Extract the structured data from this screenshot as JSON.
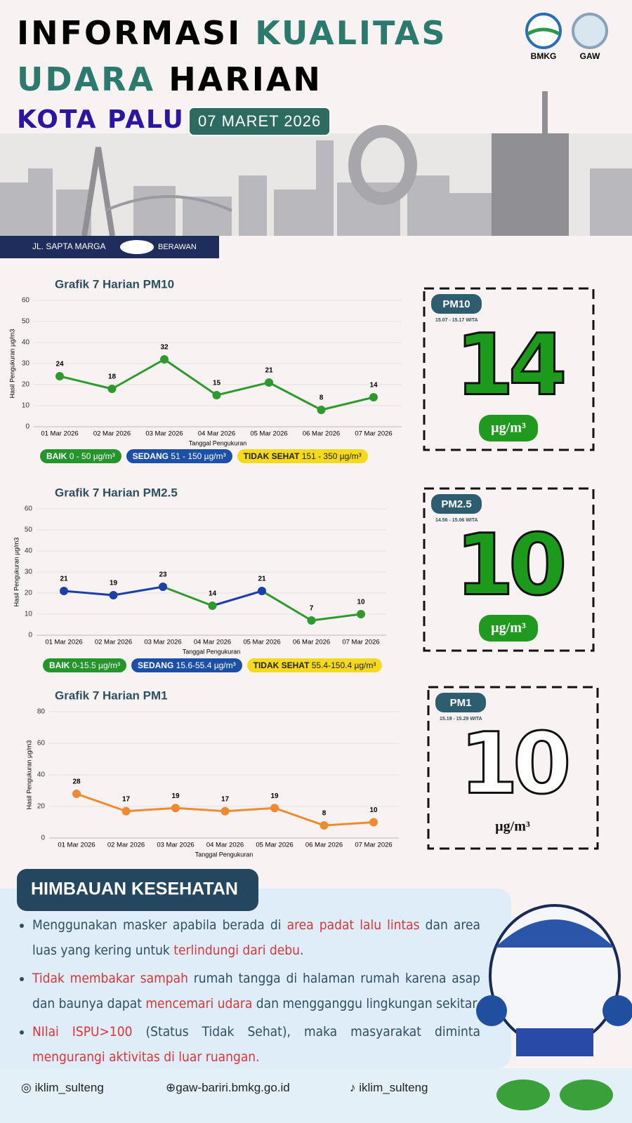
{
  "header": {
    "title_1": "INFORMASI",
    "title_2": "KUALITAS",
    "title_3": "UDARA",
    "title_4": "HARIAN",
    "city": "KOTA PALU",
    "date": "07 MARET 2026",
    "logo_1": "BMKG",
    "logo_2": "GAW",
    "location": "JL. SAPTA MARGA",
    "weather": "BERAWAN"
  },
  "chart_data": [
    {
      "type": "line",
      "title": "Grafik 7 Harian PM10",
      "x_label": "Tanggal Pengukuran",
      "y_label": "Hasil Pengukuran µg/m3",
      "categories": [
        "01 Mar 2026",
        "02 Mar 2026",
        "03 Mar 2026",
        "04 Mar 2026",
        "05 Mar 2026",
        "06 Mar 2026",
        "07 Mar 2026"
      ],
      "values": [
        24,
        18,
        32,
        15,
        21,
        8,
        14
      ],
      "color": "#2e9a2e",
      "ylim": [
        0,
        60
      ],
      "yticks": [
        0,
        10,
        20,
        30,
        40,
        50,
        60
      ],
      "grid": true,
      "bands": [
        {
          "label": "BAIK",
          "range": "0 - 50 µg/m³",
          "color": "#23952b"
        },
        {
          "label": "SEDANG",
          "range": "51 - 150 µg/m³",
          "color": "#1c4fa6"
        },
        {
          "label": "TIDAK SEHAT",
          "range": "151 - 350 µg/m³",
          "color": "#f5d91c"
        }
      ]
    },
    {
      "type": "line",
      "title": "Grafik 7 Harian PM2.5",
      "x_label": "Tanggal Pengukuran",
      "y_label": "Hasil Pengukuran µg/m3",
      "categories": [
        "01 Mar 2026",
        "02 Mar 2026",
        "03 Mar 2026",
        "04 Mar 2026",
        "05 Mar 2026",
        "06 Mar 2026",
        "07 Mar 2026"
      ],
      "values": [
        21,
        19,
        23,
        14,
        21,
        7,
        10
      ],
      "color": "#1c3fa8",
      "point_colors": [
        "#1c3fa8",
        "#1c3fa8",
        "#1c3fa8",
        "#2e9a2e",
        "#1c3fa8",
        "#2e9a2e",
        "#2e9a2e"
      ],
      "ylim": [
        0,
        60
      ],
      "yticks": [
        0,
        10,
        20,
        30,
        40,
        50,
        60
      ],
      "grid": true,
      "bands": [
        {
          "label": "BAIK",
          "range": "0-15.5 µg/m³",
          "color": "#23952b"
        },
        {
          "label": "SEDANG",
          "range": "15.6-55.4 µg/m³",
          "color": "#1c4fa6"
        },
        {
          "label": "TIDAK SEHAT",
          "range": "55.4-150.4 µg/m³",
          "color": "#f5d91c"
        }
      ]
    },
    {
      "type": "line",
      "title": "Grafik 7 Harian PM1",
      "x_label": "Tanggal Pengukuran",
      "y_label": "Hasil Pengukuran µg/m3",
      "categories": [
        "01 Mar 2026",
        "02 Mar 2026",
        "03 Mar 2026",
        "04 Mar 2026",
        "05 Mar 2026",
        "06 Mar 2026",
        "07 Mar 2026"
      ],
      "values": [
        28,
        17,
        19,
        17,
        19,
        8,
        10
      ],
      "color": "#f08a30",
      "ylim": [
        0,
        80
      ],
      "yticks": [
        0,
        20,
        40,
        60,
        80
      ],
      "grid": true
    }
  ],
  "cards": [
    {
      "name": "PM10",
      "time": "15.07 - 15.17 WITA",
      "value": 14,
      "unit": "µg/m³"
    },
    {
      "name": "PM2.5",
      "time": "14.56 - 15.06 WITA",
      "value": 10,
      "unit": "µg/m³"
    },
    {
      "name": "PM1",
      "time": "15.19 - 15.29 WITA",
      "value": 10,
      "unit": "µg/m³"
    }
  ],
  "advice": {
    "title": "HIMBAUAN KESEHATAN",
    "items": [
      [
        {
          "text": "Menggunakan masker apabila berada di "
        },
        {
          "text": "area padat lalu lintas",
          "emphasis": true
        },
        {
          "text": " dan area luas yang kering untuk "
        },
        {
          "text": "terlindungi dari debu",
          "emphasis": true
        },
        {
          "text": "."
        }
      ],
      [
        {
          "text": "Tidak membakar sampah",
          "emphasis": true
        },
        {
          "text": " rumah tangga di halaman rumah karena asap dan baunya dapat "
        },
        {
          "text": "mencemari udara",
          "emphasis": true
        },
        {
          "text": " dan mengganggu lingkungan sekitar."
        }
      ],
      [
        {
          "text": "NIlai ISPU>100",
          "emphasis": true
        },
        {
          "text": " (Status Tidak Sehat), maka masyarakat diminta "
        },
        {
          "text": "mengurangi aktivitas di luar ruangan.",
          "emphasis": true
        }
      ]
    ]
  },
  "footer": {
    "instagram": "iklim_sulteng",
    "website": "gaw-bariri.bmkg.go.id",
    "tiktok": "iklim_sulteng"
  }
}
